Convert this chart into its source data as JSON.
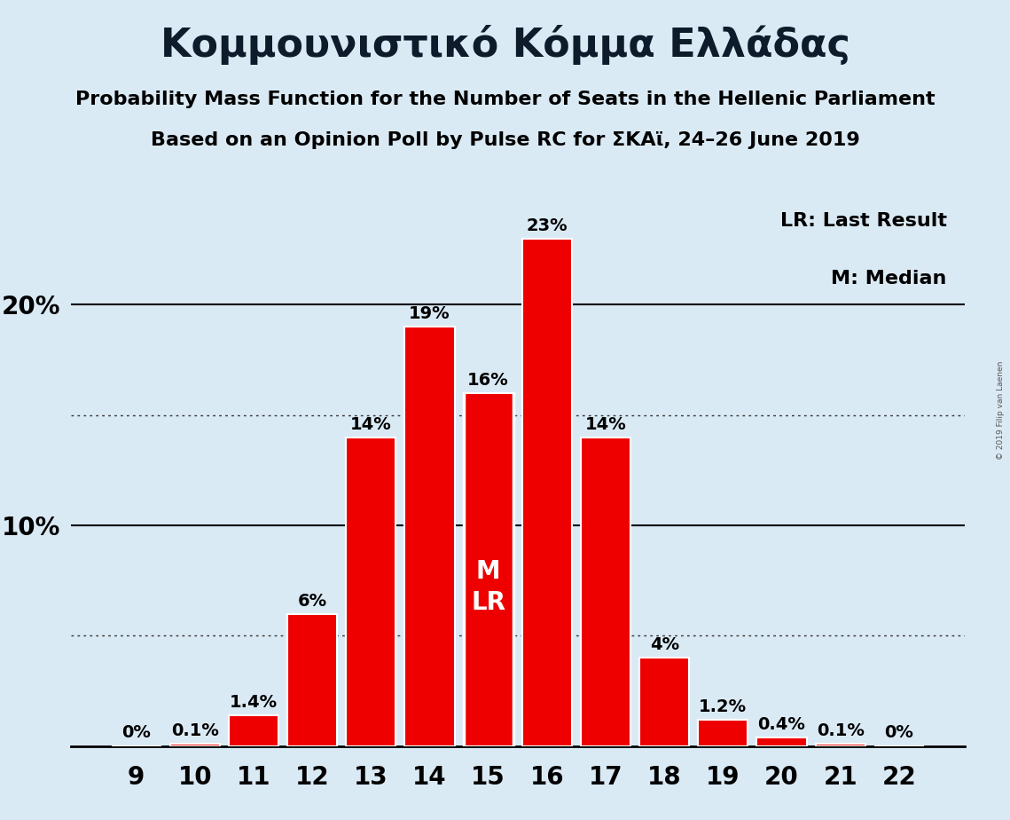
{
  "title": "Κομμουνιστικό Κόμμα Ελλάδας",
  "subtitle1": "Probability Mass Function for the Number of Seats in the Hellenic Parliament",
  "subtitle2": "Based on an Opinion Poll by Pulse RC for ΣΚΑϊ, 24–26 June 2019",
  "watermark": "© 2019 Filip van Laenen",
  "legend_lr": "LR: Last Result",
  "legend_m": "M: Median",
  "seats": [
    9,
    10,
    11,
    12,
    13,
    14,
    15,
    16,
    17,
    18,
    19,
    20,
    21,
    22
  ],
  "probabilities": [
    0.0,
    0.1,
    1.4,
    6.0,
    14.0,
    19.0,
    16.0,
    23.0,
    14.0,
    4.0,
    1.2,
    0.4,
    0.1,
    0.0
  ],
  "labels": [
    "0%",
    "0.1%",
    "1.4%",
    "6%",
    "14%",
    "19%",
    "16%",
    "23%",
    "14%",
    "4%",
    "1.2%",
    "0.4%",
    "0.1%",
    "0%"
  ],
  "bar_color": "#ee0000",
  "background_color": "#daeaf5",
  "median_lr_seat": 15,
  "dotted_lines": [
    5.0,
    15.0
  ],
  "solid_lines": [
    10.0,
    20.0
  ],
  "ylim": [
    0,
    26
  ],
  "title_fontsize": 32,
  "subtitle_fontsize": 16,
  "bar_label_fontsize": 14,
  "axis_tick_fontsize": 20,
  "legend_fontsize": 16,
  "ml_label_fontsize": 20
}
